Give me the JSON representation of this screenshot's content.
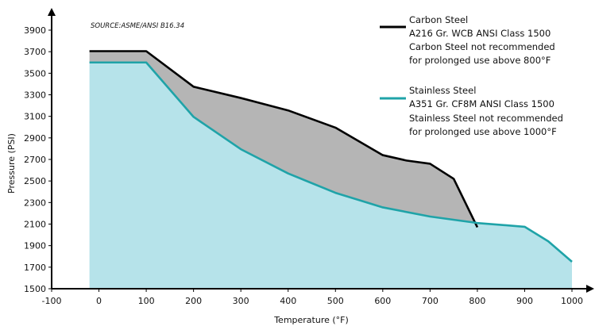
{
  "chart_data": {
    "type": "area",
    "source": "SOURCE:ASME/ANSI B16.34",
    "xlabel": "Temperature (°F)",
    "ylabel": "Pressure (PSI)",
    "xlim": [
      -100,
      1000
    ],
    "ylim": [
      1500,
      3900
    ],
    "x_ticks": [
      "-100",
      "0",
      "100",
      "200",
      "300",
      "400",
      "500",
      "600",
      "700",
      "800",
      "900",
      "1000"
    ],
    "y_ticks": [
      "1500",
      "1700",
      "1900",
      "2100",
      "2300",
      "2500",
      "2700",
      "2900",
      "3100",
      "3300",
      "3500",
      "3700",
      "3900"
    ],
    "grid": false,
    "legend_position": "top-right",
    "series": [
      {
        "name": "Carbon Steel",
        "legend_lines": [
          "Carbon Steel",
          "A216 Gr. WCB ANSI Class 1500",
          "Carbon Steel not recommended",
          "for prolonged use above 800°F"
        ],
        "color": "#000000",
        "fill": "#b5b5b5",
        "x": [
          -20,
          100,
          200,
          300,
          400,
          500,
          600,
          650,
          700,
          750,
          800
        ],
        "y": [
          3705,
          3705,
          3375,
          3270,
          3155,
          2995,
          2740,
          2690,
          2660,
          2520,
          2070
        ]
      },
      {
        "name": "Stainless Steel",
        "legend_lines": [
          "Stainless Steel",
          "A351 Gr. CF8M ANSI Class 1500",
          "Stainless Steel not recommended",
          "for prolonged use above 1000°F"
        ],
        "color": "#1fa3a8",
        "fill": "#b6e3ea",
        "x": [
          -20,
          100,
          200,
          300,
          400,
          500,
          600,
          700,
          800,
          900,
          950,
          1000
        ],
        "y": [
          3600,
          3600,
          3095,
          2795,
          2570,
          2390,
          2255,
          2170,
          2110,
          2075,
          1940,
          1750
        ]
      }
    ]
  }
}
